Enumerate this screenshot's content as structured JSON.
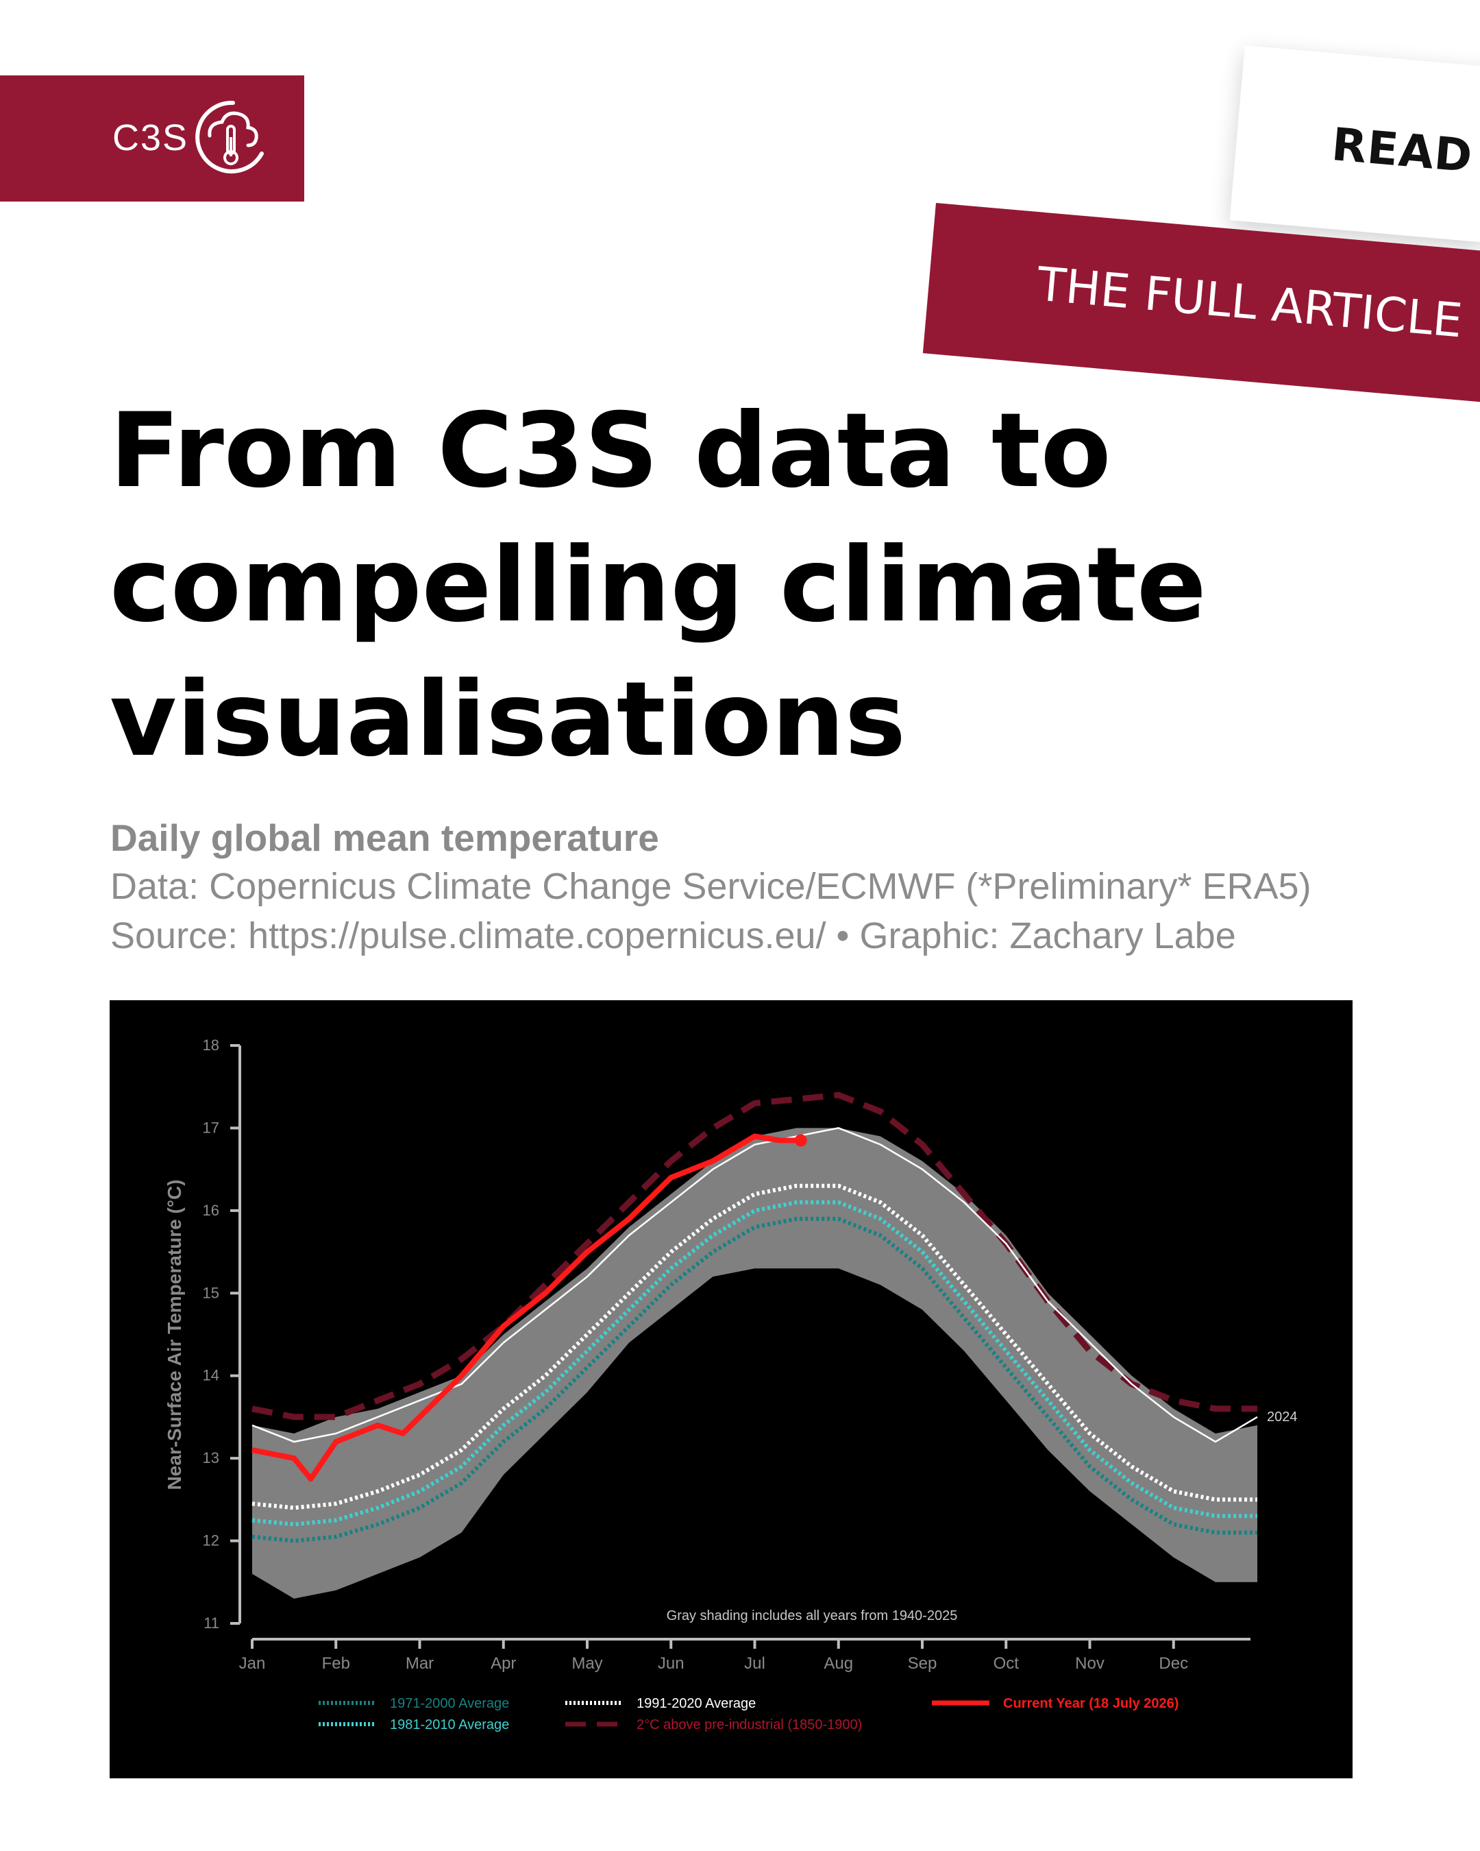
{
  "brand": {
    "logo_text": "C3S",
    "logo_icon": "cloud-thermometer-icon",
    "color": "#941834"
  },
  "cta": {
    "read_label": "READ",
    "article_label": "THE FULL ARTICLE"
  },
  "headline": {
    "line1": "From C3S data to",
    "line2": "compelling climate",
    "line3": "visualisations"
  },
  "subheader": {
    "title": "Daily global mean temperature",
    "data_line": "Data: Copernicus Climate Change Service/ECMWF (*Preliminary* ERA5)",
    "source_line": "Source: https://pulse.climate.copernicus.eu/ • Graphic: Zachary Labe"
  },
  "chart_data": {
    "type": "line",
    "ylabel": "Near-Surface Air Temperature (°C)",
    "xlabel": "",
    "ylim": [
      11,
      18
    ],
    "yticks": [
      11,
      12,
      13,
      14,
      15,
      16,
      17,
      18
    ],
    "xticks": [
      "Jan",
      "Feb",
      "Mar",
      "Apr",
      "May",
      "Jun",
      "Jul",
      "Aug",
      "Sep",
      "Oct",
      "Nov",
      "Dec"
    ],
    "annotation": "Gray shading includes all years from 1940-2025",
    "end_label": "2024",
    "background": "#000000",
    "shading": {
      "color": "#808080",
      "x_months": [
        0,
        0.5,
        1,
        1.5,
        2,
        2.5,
        3,
        3.5,
        4,
        4.5,
        5,
        5.5,
        6,
        6.5,
        7,
        7.5,
        8,
        8.5,
        9,
        9.5,
        10,
        10.5,
        11,
        11.5,
        12
      ],
      "upper": [
        13.4,
        13.3,
        13.5,
        13.6,
        13.8,
        14.0,
        14.5,
        14.9,
        15.3,
        15.8,
        16.2,
        16.6,
        16.9,
        17.0,
        17.0,
        16.9,
        16.6,
        16.2,
        15.7,
        15.0,
        14.5,
        14.0,
        13.6,
        13.3,
        13.4
      ],
      "lower": [
        11.6,
        11.3,
        11.4,
        11.6,
        11.8,
        12.1,
        12.8,
        13.3,
        13.8,
        14.4,
        14.8,
        15.2,
        15.3,
        15.3,
        15.3,
        15.1,
        14.8,
        14.3,
        13.7,
        13.1,
        12.6,
        12.2,
        11.8,
        11.5,
        11.5
      ]
    },
    "series": [
      {
        "name": "1971-2000 Average",
        "color": "#178282",
        "style": "dotted",
        "values": [
          12.05,
          12.0,
          12.05,
          12.2,
          12.4,
          12.7,
          13.2,
          13.6,
          14.1,
          14.6,
          15.1,
          15.5,
          15.8,
          15.9,
          15.9,
          15.7,
          15.3,
          14.7,
          14.1,
          13.5,
          12.9,
          12.5,
          12.2,
          12.1,
          12.1
        ]
      },
      {
        "name": "1981-2010 Average",
        "color": "#40d0d0",
        "style": "dotted",
        "values": [
          12.25,
          12.2,
          12.25,
          12.4,
          12.6,
          12.9,
          13.4,
          13.8,
          14.3,
          14.8,
          15.3,
          15.7,
          16.0,
          16.1,
          16.1,
          15.9,
          15.5,
          14.9,
          14.3,
          13.7,
          13.1,
          12.7,
          12.4,
          12.3,
          12.3
        ]
      },
      {
        "name": "1991-2020 Average",
        "color": "#ffffff",
        "style": "dotted",
        "values": [
          12.45,
          12.4,
          12.45,
          12.6,
          12.8,
          13.1,
          13.6,
          14.0,
          14.5,
          15.0,
          15.5,
          15.9,
          16.2,
          16.3,
          16.3,
          16.1,
          15.7,
          15.1,
          14.5,
          13.9,
          13.3,
          12.9,
          12.6,
          12.5,
          12.5
        ]
      },
      {
        "name": "2°C above pre-industrial (1850-1900)",
        "color": "#6a1226",
        "style": "dashed",
        "values": [
          13.6,
          13.5,
          13.5,
          13.7,
          13.9,
          14.2,
          14.6,
          15.1,
          15.6,
          16.1,
          16.6,
          17.0,
          17.3,
          17.35,
          17.4,
          17.2,
          16.8,
          16.2,
          15.6,
          14.9,
          14.3,
          13.9,
          13.7,
          13.6,
          13.6
        ]
      },
      {
        "name": "2024",
        "color": "#ffffff",
        "style": "solid",
        "values": [
          13.4,
          13.2,
          13.3,
          13.5,
          13.7,
          13.9,
          14.4,
          14.8,
          15.2,
          15.7,
          16.1,
          16.5,
          16.8,
          16.9,
          17.0,
          16.8,
          16.5,
          16.1,
          15.6,
          14.9,
          14.4,
          13.9,
          13.5,
          13.2,
          13.5
        ]
      }
    ],
    "current_year": {
      "name": "Current Year (18 July 2026)",
      "color": "#ff1a1a",
      "x_months": [
        0,
        0.5,
        0.7,
        1.0,
        1.5,
        1.8,
        2.0,
        2.5,
        3.0,
        3.5,
        4.0,
        4.5,
        5.0,
        5.5,
        6.0,
        6.3,
        6.55
      ],
      "values": [
        13.1,
        13.0,
        12.75,
        13.2,
        13.4,
        13.3,
        13.5,
        14.0,
        14.6,
        15.0,
        15.5,
        15.9,
        16.4,
        16.6,
        16.9,
        16.85,
        16.85
      ]
    },
    "legend": [
      {
        "label": "1971-2000 Average",
        "color": "#178282",
        "style": "dotted"
      },
      {
        "label": "1991-2020 Average",
        "color": "#ffffff",
        "style": "dotted"
      },
      {
        "label": "Current Year (18 July 2026)",
        "color": "#ff1a1a",
        "style": "solid"
      },
      {
        "label": "1981-2010 Average",
        "color": "#40d0d0",
        "style": "dotted"
      },
      {
        "label": "2°C above pre-industrial (1850-1900)",
        "color": "#6a1226",
        "style": "dashed"
      }
    ]
  }
}
